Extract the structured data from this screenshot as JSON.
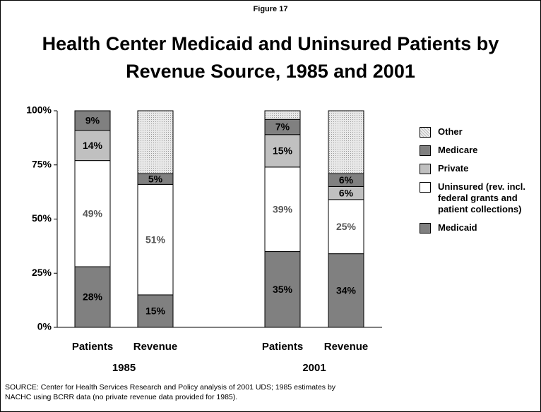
{
  "chart_data": {
    "type": "stacked_bar",
    "figure_label": "Figure 17",
    "title": "Health Center Medicaid and Uninsured Patients by Revenue Source, 1985 and 2001",
    "categories": [
      "Patients",
      "Revenue",
      "Patients",
      "Revenue"
    ],
    "groups": [
      "1985",
      "2001"
    ],
    "series": [
      {
        "name": "Medicaid",
        "color": "#808080",
        "values": [
          28,
          15,
          35,
          34
        ],
        "value_labels": [
          "28%",
          "15%",
          "35%",
          "34%"
        ]
      },
      {
        "name": "Uninsured (rev. incl. federal grants and patient collections)",
        "color": "#ffffff",
        "values": [
          49,
          51,
          39,
          25
        ],
        "value_labels": [
          "49%",
          "51%",
          "39%",
          "25%"
        ]
      },
      {
        "name": "Private",
        "color": "#c0c0c0",
        "values": [
          14,
          null,
          15,
          6
        ],
        "value_labels": [
          "14%",
          null,
          "15%",
          "6%"
        ]
      },
      {
        "name": "Medicare",
        "color": "#808080",
        "values": [
          9,
          5,
          7,
          6
        ],
        "value_labels": [
          "9%",
          "5%",
          "7%",
          "6%"
        ]
      },
      {
        "name": "Other",
        "color": "#d9d9d9",
        "values": [
          null,
          29,
          4,
          29
        ]
      }
    ],
    "ylim": [
      0,
      100
    ],
    "yticks": [
      {
        "value": 0,
        "label": "0%"
      },
      {
        "value": 25,
        "label": "25%"
      },
      {
        "value": 50,
        "label": "50%"
      },
      {
        "value": 75,
        "label": "75%"
      },
      {
        "value": 100,
        "label": "100%"
      }
    ],
    "source": [
      "SOURCE: Center for Health Services Research and Policy analysis of 2001 UDS; 1985 estimates by",
      "NACHC using BCRR data (no private revenue data provided for 1985)."
    ]
  }
}
